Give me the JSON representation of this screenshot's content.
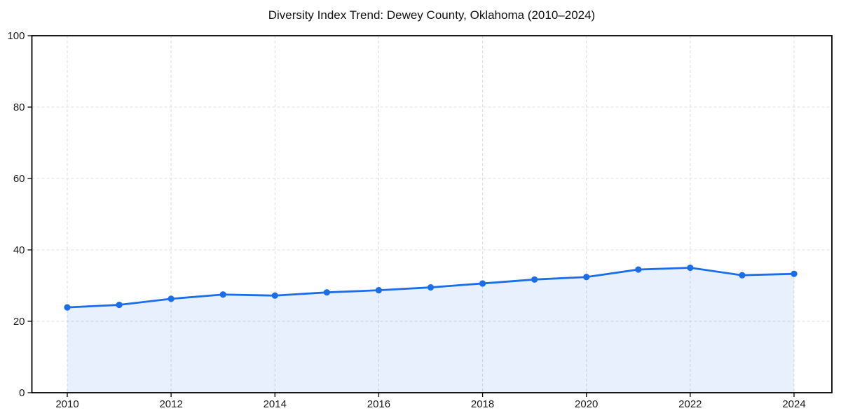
{
  "page": {
    "background_color": "#ffffff"
  },
  "chart_data": {
    "type": "area",
    "title": "Diversity Index Trend: Dewey County, Oklahoma (2010–2024)",
    "series_name": "Diversity Index",
    "x": [
      2010,
      2011,
      2012,
      2013,
      2014,
      2015,
      2016,
      2017,
      2018,
      2019,
      2020,
      2021,
      2022,
      2023,
      2024
    ],
    "values": [
      23.9,
      24.6,
      26.3,
      27.5,
      27.2,
      28.1,
      28.7,
      29.5,
      30.6,
      31.7,
      32.4,
      34.5,
      35.0,
      32.9,
      33.3
    ],
    "xlabel": "",
    "ylabel": "",
    "x_ticks": [
      2010,
      2012,
      2014,
      2016,
      2018,
      2020,
      2022,
      2024
    ],
    "y_ticks": [
      0,
      20,
      40,
      60,
      80,
      100
    ],
    "ylim": [
      0,
      100
    ],
    "grid": "dashed",
    "legend": "none",
    "marker": "circle",
    "colors": {
      "line": "#1a6ee8",
      "marker": "#1a6ee8",
      "area_fill": "rgba(26,110,232,0.10)",
      "grid": "#dcdcdc",
      "axis": "#000000",
      "title_text": "#111111",
      "tick_text": "#1a1a1a"
    }
  }
}
